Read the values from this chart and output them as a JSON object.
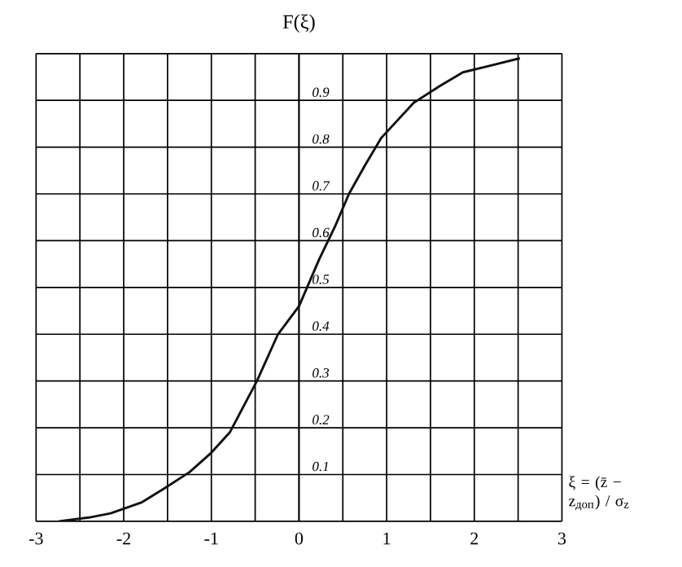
{
  "chart_data": {
    "type": "line",
    "ylabel": "F(ξ)",
    "xlabel": "ξ = (z̄ − z$_{доп}$) / σ$_{z}$",
    "x": [
      -2.74,
      -2.4,
      -2.15,
      -1.8,
      -1.54,
      -1.25,
      -1.01,
      -0.79,
      -0.48,
      -0.24,
      0,
      0.23,
      0.41,
      0.57,
      0.75,
      0.94,
      1.31,
      1.6,
      1.87,
      2.2,
      2.52
    ],
    "series": [
      {
        "color": "#111111",
        "values": [
          0.0,
          0.008,
          0.017,
          0.04,
          0.07,
          0.105,
          0.145,
          0.19,
          0.3,
          0.4,
          0.46,
          0.56,
          0.63,
          0.7,
          0.76,
          0.82,
          0.895,
          0.93,
          0.96,
          0.975,
          0.99
        ]
      }
    ],
    "xlim": [
      -3,
      3
    ],
    "ylim": [
      0,
      1
    ],
    "xticks": [
      -3,
      {
        "value": -2.5,
        "label": null
      },
      -2,
      {
        "value": -1.5,
        "label": null
      },
      -1,
      {
        "value": -0.5,
        "label": null
      },
      0,
      {
        "value": 0.5,
        "label": null
      },
      1,
      {
        "value": 1.5,
        "label": null
      },
      2,
      {
        "value": 2.5,
        "label": null
      },
      3
    ],
    "yticks": [
      {
        "value": 0,
        "label": null
      },
      0.1,
      0.2,
      0.3,
      0.4,
      0.5,
      0.6,
      0.7,
      0.8,
      0.9,
      {
        "value": 1,
        "label": null
      }
    ],
    "grid": true,
    "marker": "none",
    "line_style": "solid"
  }
}
